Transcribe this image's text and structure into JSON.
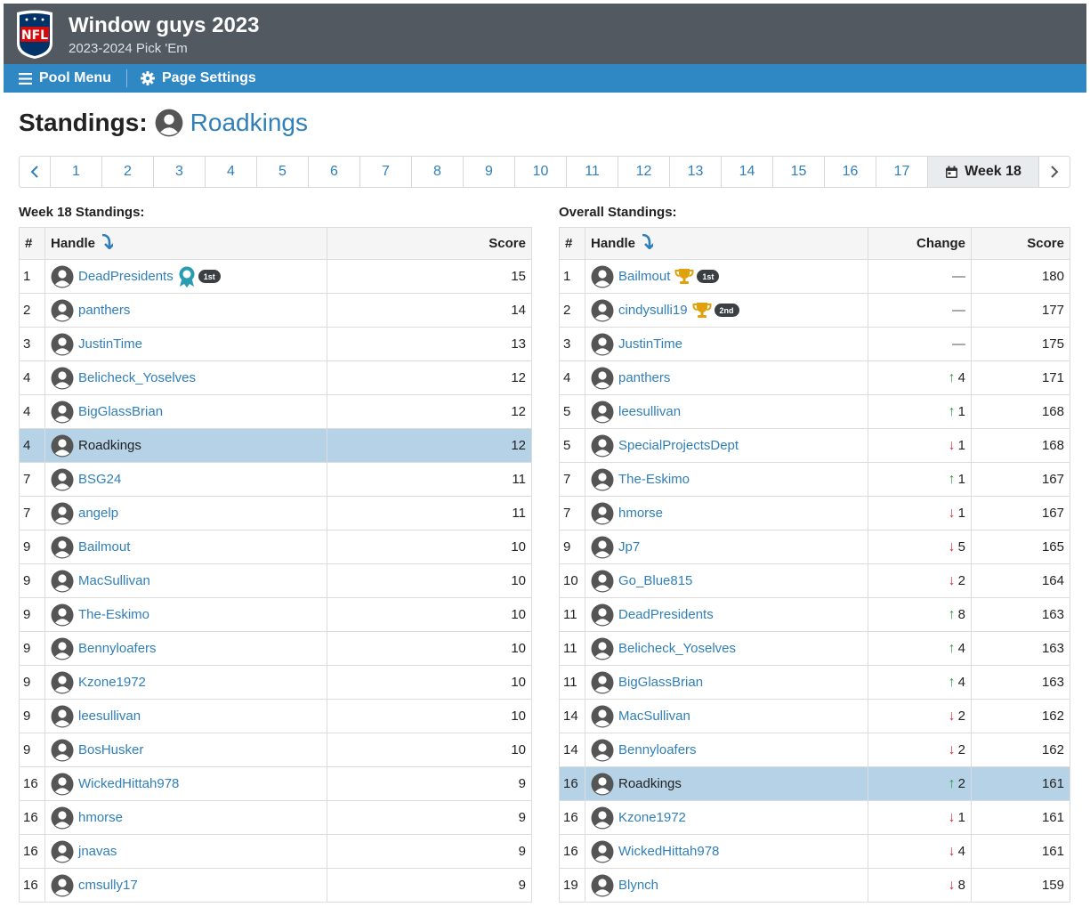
{
  "header": {
    "title": "Window guys 2023",
    "subtitle": "2023-2024 Pick 'Em",
    "logo_text": "NFL"
  },
  "menu": {
    "pool_menu": "Pool Menu",
    "page_settings": "Page Settings"
  },
  "page": {
    "title_prefix": "Standings:",
    "user": "Roadkings"
  },
  "pager": {
    "weeks": [
      "1",
      "2",
      "3",
      "4",
      "5",
      "6",
      "7",
      "8",
      "9",
      "10",
      "11",
      "12",
      "13",
      "14",
      "15",
      "16",
      "17"
    ],
    "active": "Week 18"
  },
  "week": {
    "label": "Week 18 Standings:",
    "headers": {
      "rank": "#",
      "handle": "Handle",
      "score": "Score"
    },
    "rows": [
      {
        "rank": "1",
        "handle": "DeadPresidents",
        "score": "15",
        "award": "ribbon",
        "badge": "1st"
      },
      {
        "rank": "2",
        "handle": "panthers",
        "score": "14"
      },
      {
        "rank": "3",
        "handle": "JustinTime",
        "score": "13"
      },
      {
        "rank": "4",
        "handle": "Belicheck_Yoselves",
        "score": "12"
      },
      {
        "rank": "4",
        "handle": "BigGlassBrian",
        "score": "12"
      },
      {
        "rank": "4",
        "handle": "Roadkings",
        "score": "12",
        "highlight": true
      },
      {
        "rank": "7",
        "handle": "BSG24",
        "score": "11"
      },
      {
        "rank": "7",
        "handle": "angelp",
        "score": "11"
      },
      {
        "rank": "9",
        "handle": "Bailmout",
        "score": "10"
      },
      {
        "rank": "9",
        "handle": "MacSullivan",
        "score": "10"
      },
      {
        "rank": "9",
        "handle": "The-Eskimo",
        "score": "10"
      },
      {
        "rank": "9",
        "handle": "Bennyloafers",
        "score": "10"
      },
      {
        "rank": "9",
        "handle": "Kzone1972",
        "score": "10"
      },
      {
        "rank": "9",
        "handle": "leesullivan",
        "score": "10"
      },
      {
        "rank": "9",
        "handle": "BosHusker",
        "score": "10"
      },
      {
        "rank": "16",
        "handle": "WickedHittah978",
        "score": "9"
      },
      {
        "rank": "16",
        "handle": "hmorse",
        "score": "9"
      },
      {
        "rank": "16",
        "handle": "jnavas",
        "score": "9"
      },
      {
        "rank": "16",
        "handle": "cmsully17",
        "score": "9"
      }
    ]
  },
  "overall": {
    "label": "Overall Standings:",
    "headers": {
      "rank": "#",
      "handle": "Handle",
      "change": "Change",
      "score": "Score"
    },
    "rows": [
      {
        "rank": "1",
        "handle": "Bailmout",
        "dir": "none",
        "amt": "",
        "score": "180",
        "award": "trophy",
        "badge": "1st"
      },
      {
        "rank": "2",
        "handle": "cindysulli19",
        "dir": "none",
        "amt": "",
        "score": "177",
        "award": "trophy",
        "badge": "2nd"
      },
      {
        "rank": "3",
        "handle": "JustinTime",
        "dir": "none",
        "amt": "",
        "score": "175"
      },
      {
        "rank": "4",
        "handle": "panthers",
        "dir": "up",
        "amt": "4",
        "score": "171"
      },
      {
        "rank": "5",
        "handle": "leesullivan",
        "dir": "up",
        "amt": "1",
        "score": "168"
      },
      {
        "rank": "5",
        "handle": "SpecialProjectsDept",
        "dir": "down",
        "amt": "1",
        "score": "168"
      },
      {
        "rank": "7",
        "handle": "The-Eskimo",
        "dir": "up",
        "amt": "1",
        "score": "167"
      },
      {
        "rank": "7",
        "handle": "hmorse",
        "dir": "down",
        "amt": "1",
        "score": "167"
      },
      {
        "rank": "9",
        "handle": "Jp7",
        "dir": "down",
        "amt": "5",
        "score": "165"
      },
      {
        "rank": "10",
        "handle": "Go_Blue815",
        "dir": "down",
        "amt": "2",
        "score": "164"
      },
      {
        "rank": "11",
        "handle": "DeadPresidents",
        "dir": "up",
        "amt": "8",
        "score": "163"
      },
      {
        "rank": "11",
        "handle": "Belicheck_Yoselves",
        "dir": "up",
        "amt": "4",
        "score": "163"
      },
      {
        "rank": "11",
        "handle": "BigGlassBrian",
        "dir": "up",
        "amt": "4",
        "score": "163"
      },
      {
        "rank": "14",
        "handle": "MacSullivan",
        "dir": "down",
        "amt": "2",
        "score": "162"
      },
      {
        "rank": "14",
        "handle": "Bennyloafers",
        "dir": "down",
        "amt": "2",
        "score": "162"
      },
      {
        "rank": "16",
        "handle": "Roadkings",
        "dir": "up",
        "amt": "2",
        "score": "161",
        "highlight": true
      },
      {
        "rank": "16",
        "handle": "Kzone1972",
        "dir": "down",
        "amt": "1",
        "score": "161"
      },
      {
        "rank": "16",
        "handle": "WickedHittah978",
        "dir": "down",
        "amt": "4",
        "score": "161"
      },
      {
        "rank": "19",
        "handle": "Blynch",
        "dir": "down",
        "amt": "8",
        "score": "159"
      }
    ]
  },
  "colors": {
    "topbar": "#525961",
    "menubar": "#2f87c3",
    "link": "#2f7fb9",
    "highlight": "#b5d2e6",
    "up": "#2e9b45",
    "down": "#d9333f"
  }
}
